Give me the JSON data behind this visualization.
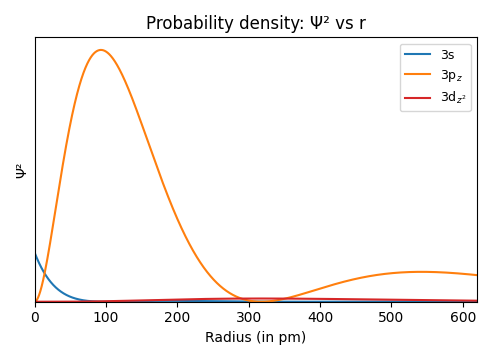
{
  "title": "Probability density: Ψ² vs r",
  "xlabel": "Radius (in pm)",
  "ylabel": "Ψ²",
  "xlim": [
    0,
    620
  ],
  "legend_labels": [
    "3s",
    "3p$_z$",
    "3d$_{z^2}$"
  ],
  "colors": [
    "#1f77b4",
    "#ff7f0e",
    "#d62728"
  ],
  "a0_pm": 52.9177
}
